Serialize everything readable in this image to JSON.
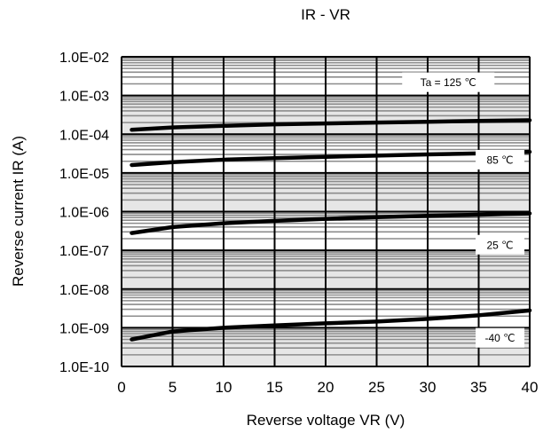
{
  "chart_data": {
    "type": "line",
    "title": "IR - VR",
    "xlabel": "Reverse voltage VR (V)",
    "ylabel": "Reverse current IR (A)",
    "xlim": [
      0,
      40
    ],
    "ylim": [
      1e-10,
      0.01
    ],
    "yscale": "log",
    "x_ticks": [
      0,
      5,
      10,
      15,
      20,
      25,
      30,
      35,
      40
    ],
    "x_tick_labels": [
      "0",
      "5",
      "10",
      "15",
      "20",
      "25",
      "30",
      "35",
      "40"
    ],
    "y_ticks": [
      1e-10,
      1e-09,
      1e-08,
      1e-07,
      1e-06,
      1e-05,
      0.0001,
      0.001,
      0.01
    ],
    "y_tick_labels": [
      "1.0E-10",
      "1.0E-09",
      "1.0E-08",
      "1.0E-07",
      "1.0E-06",
      "1.0E-05",
      "1.0E-04",
      "1.0E-03",
      "1.0E-02"
    ],
    "grid": true,
    "series": [
      {
        "name": "Ta = 125 ℃",
        "x": [
          1,
          5,
          10,
          15,
          20,
          25,
          30,
          35,
          40
        ],
        "y": [
          0.00013,
          0.00015,
          0.000165,
          0.00018,
          0.00019,
          0.0002,
          0.00021,
          0.00022,
          0.00023
        ]
      },
      {
        "name": "85 ℃",
        "x": [
          1,
          5,
          10,
          15,
          20,
          25,
          30,
          35,
          40
        ],
        "y": [
          1.6e-05,
          1.9e-05,
          2.2e-05,
          2.4e-05,
          2.6e-05,
          2.8e-05,
          3e-05,
          3.2e-05,
          3.5e-05
        ]
      },
      {
        "name": "25 ℃",
        "x": [
          1,
          5,
          10,
          15,
          20,
          25,
          30,
          35,
          40
        ],
        "y": [
          2.8e-07,
          4e-07,
          5e-07,
          5.8e-07,
          6.5e-07,
          7.2e-07,
          7.8e-07,
          8.3e-07,
          9e-07
        ]
      },
      {
        "name": "-40 ℃",
        "x": [
          1,
          5,
          10,
          15,
          20,
          25,
          30,
          35,
          40
        ],
        "y": [
          5e-10,
          8e-10,
          1e-09,
          1.15e-09,
          1.3e-09,
          1.45e-09,
          1.7e-09,
          2.1e-09,
          2.8e-09
        ]
      }
    ]
  }
}
